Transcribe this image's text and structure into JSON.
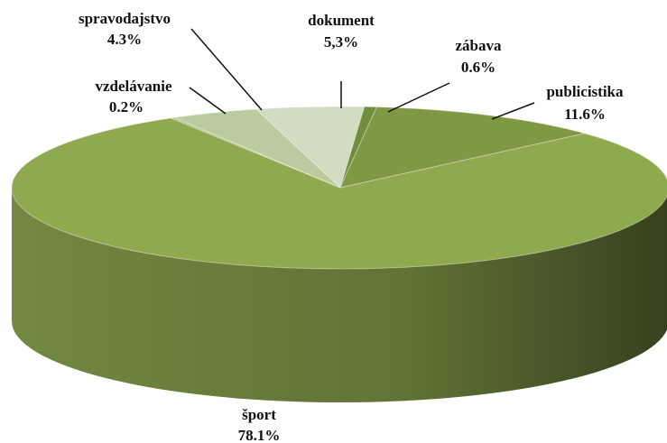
{
  "chart_data": {
    "type": "pie",
    "categories": [
      "dokument",
      "zábava",
      "publicistika",
      "šport",
      "vzdelávanie",
      "spravodajstvo"
    ],
    "values": [
      5.3,
      0.6,
      11.6,
      78.1,
      0.2,
      4.3
    ],
    "value_labels": [
      "5,3%",
      "0.6%",
      "11.6%",
      "78.1%",
      "0.2%",
      "4.3%"
    ],
    "colors": [
      "#d3dcc0",
      "#6f8d3c",
      "#7e9843",
      "#8fa94f",
      "#a9bb82",
      "#bccaa0"
    ]
  }
}
